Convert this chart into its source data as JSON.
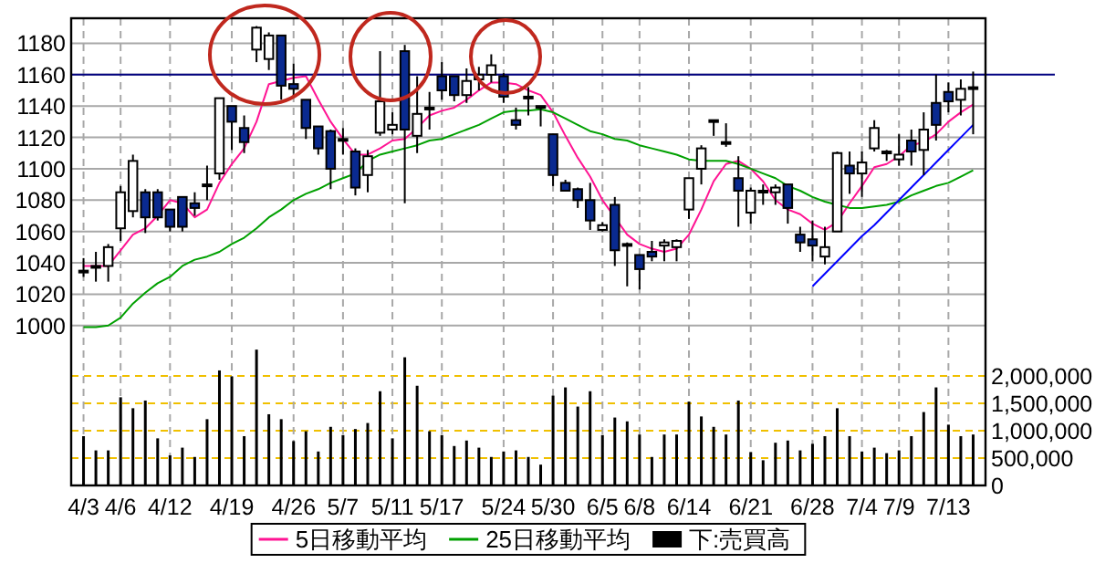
{
  "chart_data": {
    "type": "candlestick",
    "categories": [
      "4/3",
      null,
      null,
      "4/6",
      null,
      null,
      null,
      "4/12",
      null,
      null,
      null,
      null,
      "4/19",
      null,
      null,
      null,
      null,
      "4/26",
      null,
      null,
      null,
      "5/7",
      null,
      null,
      null,
      "5/11",
      null,
      null,
      null,
      "5/17",
      null,
      null,
      null,
      null,
      "5/24",
      null,
      null,
      null,
      "5/30",
      null,
      null,
      null,
      "6/5",
      null,
      null,
      "6/8",
      null,
      null,
      null,
      "6/14",
      null,
      null,
      null,
      null,
      "6/21",
      null,
      null,
      null,
      null,
      "6/28",
      null,
      null,
      null,
      "7/4",
      null,
      null,
      "7/9",
      null,
      null,
      null,
      "7/13",
      null,
      null
    ],
    "ohlc": [
      [
        1035,
        1043,
        1031,
        1034
      ],
      [
        1037,
        1047,
        1028,
        1038
      ],
      [
        1038,
        1052,
        1028,
        1050
      ],
      [
        1062,
        1089,
        1054,
        1085
      ],
      [
        1073,
        1109,
        1069,
        1105
      ],
      [
        1085,
        1087,
        1059,
        1069
      ],
      [
        1085,
        1087,
        1067,
        1069
      ],
      [
        1074,
        1074,
        1060,
        1063
      ],
      [
        1082,
        1082,
        1060,
        1063
      ],
      [
        1078,
        1085,
        1070,
        1075
      ],
      [
        1089,
        1102,
        1080,
        1090
      ],
      [
        1097,
        1145,
        1093,
        1145
      ],
      [
        1140,
        1140,
        1112,
        1130
      ],
      [
        1126,
        1134,
        1110,
        1117
      ],
      [
        1176,
        1191,
        1168,
        1190
      ],
      [
        1170,
        1187,
        1163,
        1185
      ],
      [
        1185,
        1185,
        1144,
        1153
      ],
      [
        1154,
        1167,
        1146,
        1151
      ],
      [
        1144,
        1144,
        1119,
        1126
      ],
      [
        1127,
        1127,
        1109,
        1113
      ],
      [
        1124,
        1125,
        1087,
        1100
      ],
      [
        1119,
        1126,
        1109,
        1118
      ],
      [
        1111,
        1113,
        1083,
        1088
      ],
      [
        1096,
        1112,
        1085,
        1108
      ],
      [
        1123,
        1175,
        1121,
        1143
      ],
      [
        1125,
        1136,
        1122,
        1128
      ],
      [
        1175,
        1179,
        1078,
        1125
      ],
      [
        1121,
        1159,
        1110,
        1135
      ],
      [
        1138,
        1149,
        1125,
        1139
      ],
      [
        1159,
        1168,
        1144,
        1150
      ],
      [
        1159,
        1159,
        1143,
        1147
      ],
      [
        1147,
        1164,
        1142,
        1156
      ],
      [
        1157,
        1165,
        1150,
        1160
      ],
      [
        1160,
        1173,
        1155,
        1166
      ],
      [
        1159,
        1161,
        1142,
        1146
      ],
      [
        1131,
        1139,
        1125,
        1128
      ],
      [
        1145,
        1152,
        1134,
        1146
      ],
      [
        1140,
        1140,
        1127,
        1139
      ],
      [
        1122,
        1122,
        1089,
        1096
      ],
      [
        1091,
        1093,
        1086,
        1086
      ],
      [
        1087,
        1088,
        1075,
        1080
      ],
      [
        1080,
        1091,
        1061,
        1067
      ],
      [
        1061,
        1066,
        1060,
        1064
      ],
      [
        1077,
        1082,
        1038,
        1048
      ],
      [
        1052,
        1053,
        1025,
        1051
      ],
      [
        1045,
        1045,
        1023,
        1036
      ],
      [
        1047,
        1054,
        1041,
        1044
      ],
      [
        1051,
        1055,
        1041,
        1053
      ],
      [
        1050,
        1055,
        1041,
        1054
      ],
      [
        1074,
        1094,
        1068,
        1094
      ],
      [
        1100,
        1115,
        1090,
        1113
      ],
      [
        1131,
        1131,
        1121,
        1130
      ],
      [
        1117,
        1129,
        1114,
        1116
      ],
      [
        1094,
        1108,
        1063,
        1086
      ],
      [
        1072,
        1088,
        1065,
        1086
      ],
      [
        1085,
        1090,
        1077,
        1086
      ],
      [
        1085,
        1090,
        1077,
        1088
      ],
      [
        1090,
        1090,
        1065,
        1075
      ],
      [
        1058,
        1063,
        1047,
        1053
      ],
      [
        1055,
        1067,
        1041,
        1051
      ],
      [
        1044,
        1063,
        1039,
        1050
      ],
      [
        1060,
        1111,
        1060,
        1110
      ],
      [
        1102,
        1111,
        1084,
        1097
      ],
      [
        1097,
        1111,
        1082,
        1104
      ],
      [
        1113,
        1131,
        1111,
        1126
      ],
      [
        1110,
        1112,
        1105,
        1111
      ],
      [
        1106,
        1122,
        1102,
        1109
      ],
      [
        1118,
        1125,
        1102,
        1111
      ],
      [
        1112,
        1136,
        1096,
        1125
      ],
      [
        1142,
        1160,
        1118,
        1128
      ],
      [
        1149,
        1155,
        1136,
        1143
      ],
      [
        1144,
        1157,
        1134,
        1151
      ],
      [
        1151,
        1162,
        1122,
        1152
      ]
    ],
    "series": [
      {
        "type": "line",
        "name": "5日移動平均",
        "color": "#ff1493",
        "values": [
          1038,
          1038,
          1038,
          1048,
          1058,
          1062,
          1070,
          1080,
          1078,
          1069,
          1074,
          1091,
          1103,
          1113,
          1130,
          1154,
          1156,
          1158,
          1159,
          1144,
          1130,
          1119,
          1109,
          1109,
          1113,
          1118,
          1119,
          1126,
          1134,
          1137,
          1139,
          1144,
          1150,
          1155,
          1155,
          1154,
          1150,
          1147,
          1136,
          1121,
          1107,
          1095,
          1080,
          null,
          1058,
          1052,
          1049,
          1047,
          1049,
          1058,
          1074,
          1092,
          1103,
          1105,
          1100,
          1092,
          1080,
          1074,
          1071,
          1065,
          1061,
          1066,
          1078,
          1089,
          1101,
          1103,
          1108,
          1115,
          1117,
          1122,
          1130,
          1136,
          1141
        ]
      },
      {
        "type": "line",
        "name": "25日移動平均",
        "color": "#00a000",
        "values": [
          999,
          999,
          1000,
          1005,
          1014,
          1021,
          1027,
          1031,
          1038,
          1042,
          1044,
          1047,
          1052,
          1056,
          1062,
          1069,
          1074,
          1080,
          1084,
          1087,
          1091,
          1094,
          1097,
          1105,
          1109,
          1111,
          1113,
          1115,
          1118,
          1119,
          1122,
          1125,
          1128,
          1132,
          1136,
          1137,
          1137,
          1138,
          1136,
          1132,
          1128,
          1124,
          1122,
          1119,
          1118,
          1115,
          1113,
          1111,
          1109,
          1106,
          1105,
          1105,
          1105,
          1103,
          1100,
          1097,
          1094,
          1089,
          1086,
          1082,
          1079,
          1077,
          1075,
          1075,
          1076,
          1077,
          1079,
          1083,
          1086,
          1089,
          1091,
          1095,
          1099
        ]
      },
      {
        "type": "line",
        "color": "#0000ff",
        "values": [
          null,
          null,
          null,
          null,
          null,
          null,
          null,
          null,
          null,
          null,
          null,
          null,
          null,
          null,
          null,
          null,
          null,
          null,
          null,
          null,
          null,
          null,
          null,
          null,
          null,
          null,
          null,
          null,
          null,
          null,
          null,
          null,
          null,
          null,
          null,
          null,
          null,
          null,
          null,
          null,
          null,
          null,
          null,
          null,
          null,
          null,
          null,
          null,
          null,
          null,
          null,
          null,
          null,
          null,
          null,
          null,
          null,
          null,
          null,
          1025,
          1033,
          1041,
          1049,
          1057,
          1064,
          1072,
          1080,
          1088,
          1096,
          1104,
          1112,
          1120,
          1128
        ]
      },
      {
        "type": "bar",
        "name": "下:売買高",
        "color": "#000000",
        "axis": "y2",
        "values": [
          900000,
          640000,
          640000,
          1610000,
          1410000,
          1550000,
          860000,
          550000,
          690000,
          520000,
          1210000,
          2100000,
          1990000,
          900000,
          2480000,
          1300000,
          1210000,
          810000,
          990000,
          620000,
          1070000,
          920000,
          1030000,
          1140000,
          1720000,
          860000,
          2340000,
          1820000,
          990000,
          920000,
          720000,
          820000,
          690000,
          520000,
          620000,
          640000,
          520000,
          380000,
          1640000,
          1790000,
          1440000,
          1720000,
          920000,
          1240000,
          1170000,
          930000,
          520000,
          930000,
          930000,
          1530000,
          1260000,
          1070000,
          930000,
          1550000,
          610000,
          460000,
          780000,
          820000,
          640000,
          760000,
          900000,
          1410000,
          900000,
          620000,
          690000,
          590000,
          640000,
          900000,
          1340000,
          1790000,
          1110000,
          900000,
          930000
        ]
      }
    ],
    "ylim": [
      898,
      1196
    ],
    "yticks": [
      1000,
      1020,
      1040,
      1060,
      1080,
      1100,
      1120,
      1140,
      1160,
      1180
    ],
    "y2lim": [
      0,
      8530000
    ],
    "y2ticks": [
      0,
      {
        "value": 500000,
        "label": "500,000"
      },
      {
        "value": 1000000,
        "label": "1,000,000"
      },
      {
        "value": 1500000,
        "label": "1,500,000"
      },
      {
        "value": 2000000,
        "label": "2,000,000"
      }
    ],
    "ref_lines": [
      {
        "axis": "y",
        "value": 1160,
        "color": "#000080"
      }
    ],
    "grid": true,
    "legend": "bottom"
  }
}
